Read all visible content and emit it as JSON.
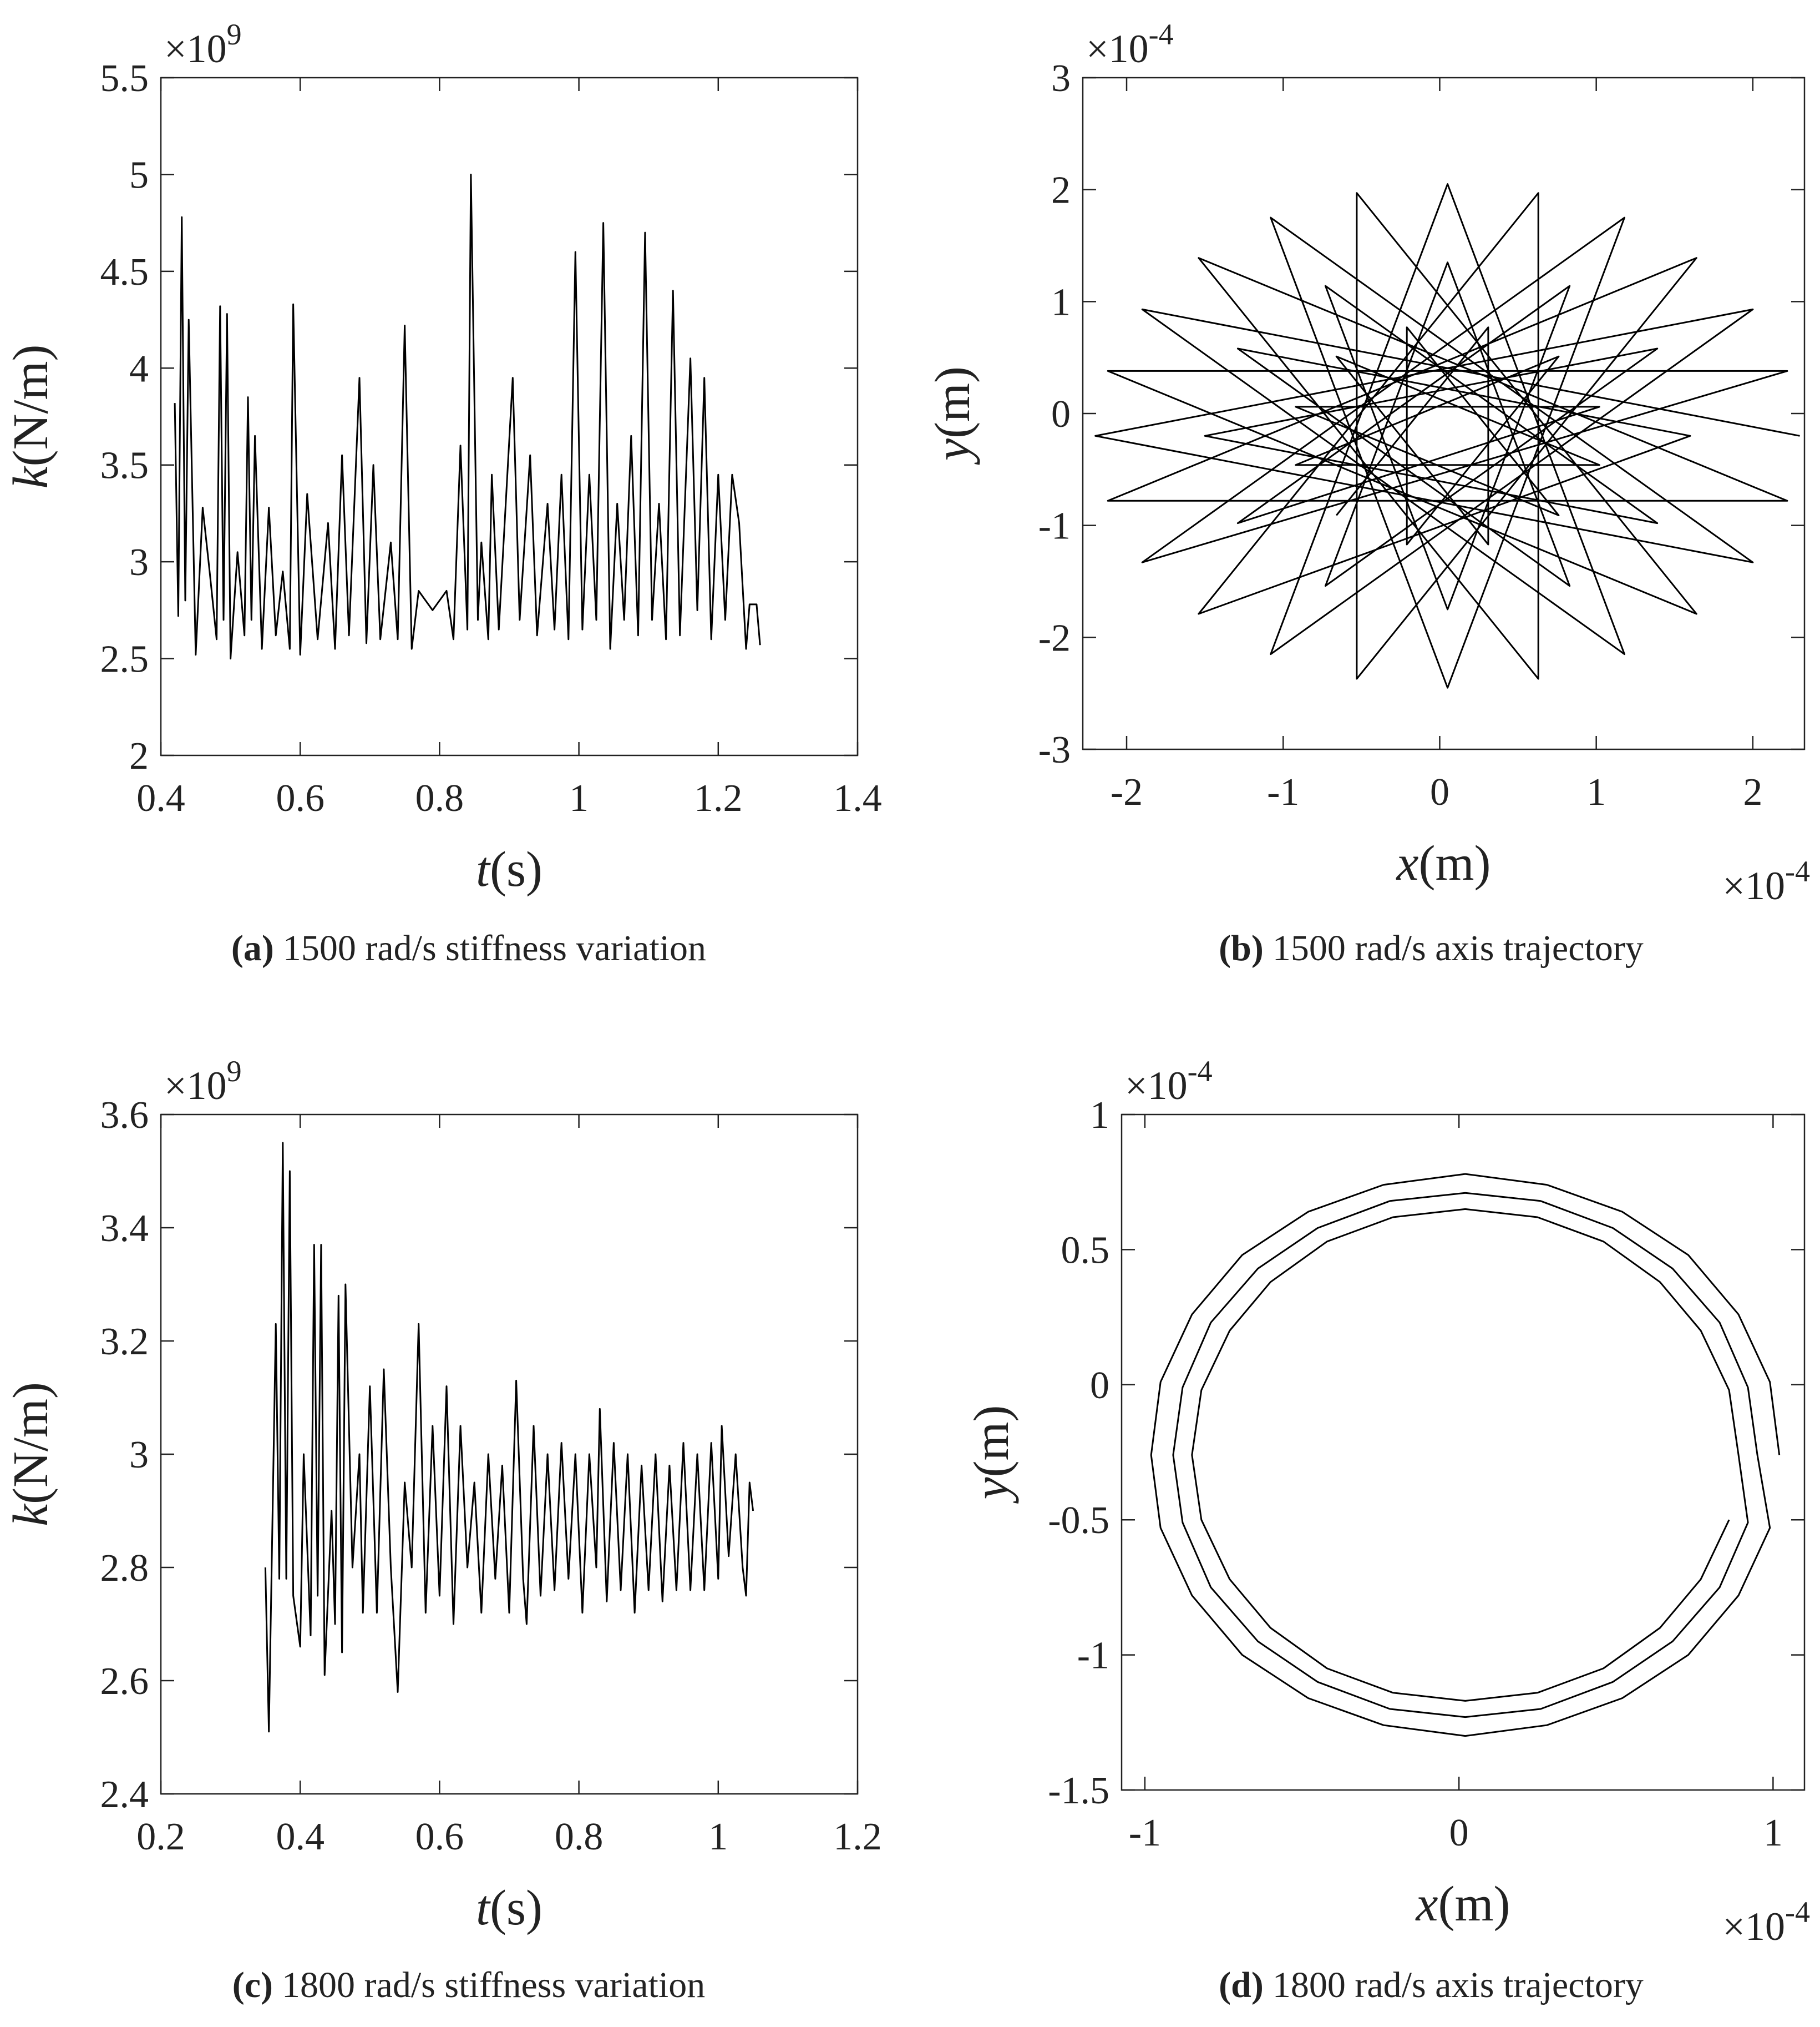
{
  "chart_data": [
    {
      "type": "line",
      "caption": {
        "label": "(a)",
        "text": "1500 rad/s stiffness variation"
      },
      "xlabel": [
        "t",
        "(s)"
      ],
      "ylabel": [
        "k",
        "(N/m)"
      ],
      "y_exponent": [
        "×10",
        "9"
      ],
      "xlim": [
        0.4,
        1.4
      ],
      "xticks": [
        0.4,
        0.6,
        0.8,
        1,
        1.2,
        1.4
      ],
      "ylim": [
        2,
        5.5
      ],
      "yticks": [
        2,
        2.5,
        3,
        3.5,
        4,
        4.5,
        5,
        5.5
      ],
      "x": [
        0.42,
        0.425,
        0.43,
        0.435,
        0.44,
        0.45,
        0.46,
        0.47,
        0.48,
        0.485,
        0.49,
        0.495,
        0.5,
        0.51,
        0.52,
        0.525,
        0.53,
        0.535,
        0.545,
        0.555,
        0.565,
        0.575,
        0.585,
        0.59,
        0.6,
        0.61,
        0.625,
        0.64,
        0.65,
        0.66,
        0.67,
        0.685,
        0.695,
        0.705,
        0.715,
        0.73,
        0.74,
        0.75,
        0.76,
        0.77,
        0.79,
        0.81,
        0.82,
        0.83,
        0.84,
        0.845,
        0.855,
        0.86,
        0.87,
        0.875,
        0.885,
        0.895,
        0.905,
        0.915,
        0.93,
        0.94,
        0.955,
        0.965,
        0.975,
        0.985,
        0.995,
        1.005,
        1.015,
        1.025,
        1.035,
        1.045,
        1.055,
        1.065,
        1.075,
        1.085,
        1.095,
        1.105,
        1.115,
        1.125,
        1.135,
        1.145,
        1.16,
        1.17,
        1.18,
        1.19,
        1.2,
        1.21,
        1.22,
        1.23,
        1.24,
        1.245,
        1.255,
        1.26
      ],
      "series": [
        {
          "color": "#000000",
          "values": [
            3.82,
            2.72,
            4.78,
            2.8,
            4.25,
            2.52,
            3.28,
            2.95,
            2.6,
            4.32,
            2.7,
            4.28,
            2.5,
            3.05,
            2.62,
            3.85,
            2.7,
            3.65,
            2.55,
            3.28,
            2.62,
            2.95,
            2.55,
            4.33,
            2.52,
            3.35,
            2.6,
            3.2,
            2.55,
            3.55,
            2.62,
            3.95,
            2.58,
            3.5,
            2.6,
            3.1,
            2.6,
            4.22,
            2.55,
            2.85,
            2.75,
            2.85,
            2.6,
            3.6,
            2.65,
            5.0,
            2.7,
            3.1,
            2.6,
            3.45,
            2.65,
            3.3,
            3.95,
            2.7,
            3.55,
            2.62,
            3.3,
            2.65,
            3.45,
            2.6,
            4.6,
            2.65,
            3.45,
            2.7,
            4.75,
            2.55,
            3.3,
            2.7,
            3.65,
            2.62,
            4.7,
            2.7,
            3.3,
            2.6,
            4.4,
            2.62,
            4.05,
            2.75,
            3.95,
            2.6,
            3.45,
            2.7,
            3.45,
            3.2,
            2.55,
            2.78,
            2.78,
            2.57
          ]
        }
      ]
    },
    {
      "type": "line",
      "caption": {
        "label": "(b)",
        "text": "1500 rad/s axis trajectory"
      },
      "xlabel": [
        "x",
        "(m)"
      ],
      "ylabel": [
        "y",
        "(m)"
      ],
      "y_exponent": [
        "×10",
        "-4"
      ],
      "x_exponent": [
        "×10",
        "-4"
      ],
      "xlim": [
        -2.28,
        2.33
      ],
      "xticks": [
        -2,
        -1,
        0,
        1,
        2
      ],
      "ylim": [
        -3,
        3
      ],
      "yticks": [
        -3,
        -2,
        -1,
        0,
        1,
        2,
        3
      ],
      "x": [
        2.3,
        -1.9,
        1.18,
        0.05,
        -1.08,
        2.0,
        -2.2,
        2.0,
        -1.08,
        0.05,
        1.18,
        -1.9,
        2.22,
        -2.12,
        1.64,
        -0.53,
        -0.53,
        1.64,
        -2.12,
        2.22,
        -1.54,
        0.63,
        0.63,
        -1.54,
        1.6,
        -1.29,
        0.83,
        0.05,
        -0.73,
        1.39,
        -1.5,
        1.39,
        -0.73,
        0.05,
        0.83,
        -1.29,
        1.02,
        -0.92,
        0.76,
        -0.21,
        -0.21,
        0.76,
        -0.92,
        1.02,
        -0.66,
        0.31,
        0.31,
        -0.66
      ],
      "series": [
        {
          "color": "#000000",
          "values": [
            -0.2,
            0.93,
            -2.15,
            2.05,
            -2.15,
            0.93,
            -0.2,
            -1.33,
            1.75,
            -2.45,
            1.75,
            -1.33,
            0.38,
            0.38,
            -1.79,
            1.97,
            -2.37,
            1.39,
            -0.78,
            -0.78,
            1.39,
            -2.37,
            1.97,
            -1.79,
            -0.2,
            0.58,
            -1.54,
            1.35,
            -1.54,
            0.58,
            -0.2,
            -0.98,
            1.14,
            -1.75,
            1.14,
            -0.98,
            0.06,
            0.06,
            -0.91,
            0.77,
            -1.17,
            0.51,
            -0.46,
            -0.46,
            0.51,
            -1.17,
            0.77,
            -0.91
          ]
        }
      ]
    },
    {
      "type": "line",
      "caption": {
        "label": "(c)",
        "text": "1800 rad/s stiffness variation"
      },
      "xlabel": [
        "t",
        "(s)"
      ],
      "ylabel": [
        "k",
        "(N/m)"
      ],
      "y_exponent": [
        "×10",
        "9"
      ],
      "xlim": [
        0.2,
        1.2
      ],
      "xticks": [
        0.2,
        0.4,
        0.6,
        0.8,
        1,
        1.2
      ],
      "ylim": [
        2.4,
        3.6
      ],
      "yticks": [
        2.4,
        2.6,
        2.8,
        3,
        3.2,
        3.4,
        3.6
      ],
      "x": [
        0.35,
        0.355,
        0.365,
        0.37,
        0.375,
        0.38,
        0.385,
        0.39,
        0.4,
        0.405,
        0.415,
        0.42,
        0.425,
        0.43,
        0.435,
        0.445,
        0.45,
        0.455,
        0.46,
        0.465,
        0.475,
        0.485,
        0.49,
        0.5,
        0.51,
        0.52,
        0.53,
        0.54,
        0.55,
        0.56,
        0.57,
        0.58,
        0.59,
        0.6,
        0.61,
        0.62,
        0.63,
        0.64,
        0.65,
        0.66,
        0.67,
        0.68,
        0.69,
        0.7,
        0.71,
        0.72,
        0.725,
        0.735,
        0.745,
        0.755,
        0.765,
        0.775,
        0.785,
        0.795,
        0.805,
        0.815,
        0.825,
        0.83,
        0.84,
        0.85,
        0.86,
        0.87,
        0.88,
        0.89,
        0.9,
        0.91,
        0.92,
        0.93,
        0.94,
        0.95,
        0.96,
        0.97,
        0.98,
        0.99,
        1.0,
        1.005,
        1.015,
        1.025,
        1.035,
        1.04,
        1.045,
        1.05
      ],
      "series": [
        {
          "color": "#000000",
          "values": [
            2.8,
            2.51,
            3.23,
            2.78,
            3.55,
            2.78,
            3.5,
            2.75,
            2.66,
            3.0,
            2.68,
            3.37,
            2.75,
            3.37,
            2.61,
            2.9,
            2.7,
            3.28,
            2.65,
            3.3,
            2.8,
            3.0,
            2.72,
            3.12,
            2.72,
            3.15,
            2.8,
            2.58,
            2.95,
            2.8,
            3.23,
            2.72,
            3.05,
            2.75,
            3.12,
            2.7,
            3.05,
            2.8,
            2.95,
            2.72,
            3.0,
            2.78,
            2.98,
            2.72,
            3.13,
            2.78,
            2.7,
            3.05,
            2.75,
            3.0,
            2.76,
            3.02,
            2.78,
            3.0,
            2.72,
            3.0,
            2.8,
            3.08,
            2.74,
            3.02,
            2.76,
            3.0,
            2.72,
            2.98,
            2.76,
            3.0,
            2.74,
            2.98,
            2.76,
            3.02,
            2.76,
            3.0,
            2.76,
            3.02,
            2.78,
            3.05,
            2.82,
            3.0,
            2.8,
            2.75,
            2.95,
            2.9
          ]
        }
      ]
    },
    {
      "type": "line",
      "caption": {
        "label": "(d)",
        "text": "1800 rad/s axis trajectory"
      },
      "xlabel": [
        "x",
        "(m)"
      ],
      "ylabel": [
        "y",
        "(m)"
      ],
      "y_exponent": [
        "×10",
        "-4"
      ],
      "x_exponent": [
        "×10",
        "-4"
      ],
      "xlim": [
        -1.074,
        1.1
      ],
      "xticks": [
        -1,
        0,
        1
      ],
      "ylim": [
        -1.5,
        1
      ],
      "yticks": [
        -1.5,
        -1,
        -0.5,
        0,
        0.5,
        1
      ],
      "x": [
        1.02,
        0.99,
        0.89,
        0.73,
        0.52,
        0.28,
        0.02,
        -0.24,
        -0.48,
        -0.69,
        -0.85,
        -0.95,
        -0.98,
        -0.95,
        -0.85,
        -0.69,
        -0.48,
        -0.24,
        0.02,
        0.28,
        0.52,
        0.73,
        0.89,
        0.99,
        0.95,
        0.92,
        0.83,
        0.68,
        0.49,
        0.26,
        0.02,
        -0.22,
        -0.45,
        -0.64,
        -0.79,
        -0.88,
        -0.91,
        -0.88,
        -0.79,
        -0.64,
        -0.45,
        -0.22,
        0.02,
        0.26,
        0.49,
        0.68,
        0.83,
        0.92,
        0.89,
        0.86,
        0.77,
        0.64,
        0.46,
        0.25,
        0.02,
        -0.21,
        -0.42,
        -0.6,
        -0.73,
        -0.82,
        -0.85,
        -0.82,
        -0.73,
        -0.6,
        -0.42,
        -0.21,
        0.02,
        0.25,
        0.46,
        0.64,
        0.77,
        0.86
      ],
      "series": [
        {
          "color": "#000000",
          "values": [
            -0.26,
            0.01,
            0.26,
            0.48,
            0.64,
            0.74,
            0.78,
            0.74,
            0.64,
            0.48,
            0.26,
            0.01,
            -0.26,
            -0.53,
            -0.78,
            -1.0,
            -1.16,
            -1.26,
            -1.3,
            -1.26,
            -1.16,
            -1.0,
            -0.78,
            -0.53,
            -0.26,
            -0.01,
            0.23,
            0.43,
            0.58,
            0.68,
            0.71,
            0.68,
            0.58,
            0.43,
            0.23,
            -0.01,
            -0.26,
            -0.51,
            -0.75,
            -0.95,
            -1.1,
            -1.2,
            -1.23,
            -1.2,
            -1.1,
            -0.95,
            -0.75,
            -0.51,
            -0.26,
            -0.02,
            0.2,
            0.38,
            0.53,
            0.62,
            0.65,
            0.62,
            0.53,
            0.38,
            0.2,
            -0.02,
            -0.26,
            -0.5,
            -0.72,
            -0.9,
            -1.05,
            -1.14,
            -1.17,
            -1.14,
            -1.05,
            -0.9,
            -0.72,
            -0.5
          ]
        }
      ]
    }
  ]
}
